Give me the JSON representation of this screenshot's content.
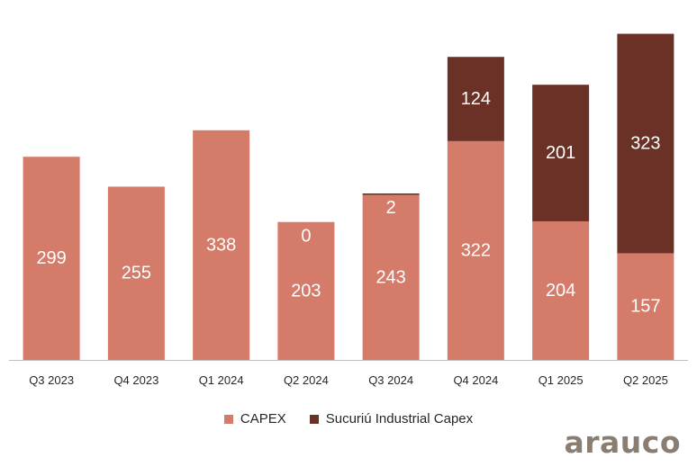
{
  "chart_data": {
    "type": "bar",
    "stacked": true,
    "title": "",
    "xlabel": "",
    "ylabel": "",
    "categories": [
      "Q3 2023",
      "Q4 2023",
      "Q1 2024",
      "Q2 2024",
      "Q3 2024",
      "Q4 2024",
      "Q1 2025",
      "Q2 2025"
    ],
    "series": [
      {
        "name": "CAPEX",
        "color": "#D57B6A",
        "values": [
          299,
          255,
          338,
          203,
          243,
          322,
          204,
          157
        ]
      },
      {
        "name": "Sucuriú Industrial Capex",
        "color": "#6B3026",
        "values": [
          null,
          null,
          null,
          0,
          2,
          124,
          201,
          323
        ]
      }
    ],
    "ylim": [
      0,
      490
    ],
    "grid": false,
    "legend_position": "bottom"
  },
  "branding": {
    "logo_text": "arauco"
  }
}
